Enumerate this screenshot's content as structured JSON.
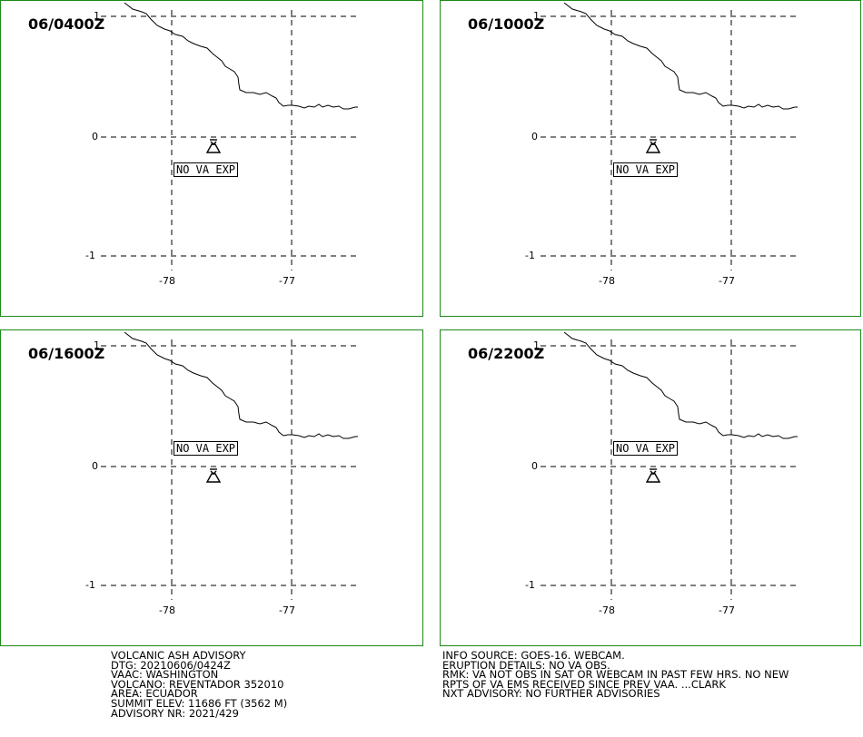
{
  "colors": {
    "panel_border": "#1a8a1a",
    "line": "#000000",
    "background": "#ffffff"
  },
  "axis_labels": {
    "lat_top": "1",
    "lat_mid": "0",
    "lat_bottom": "-1",
    "lon_left": "-78",
    "lon_right": "-77"
  },
  "va_label": "NO VA EXP",
  "panels": [
    {
      "time": "06/0400Z",
      "label_position": "below-volcano"
    },
    {
      "time": "06/1000Z",
      "label_position": "below-volcano"
    },
    {
      "time": "06/1600Z",
      "label_position": "above-volcano"
    },
    {
      "time": "06/2200Z",
      "label_position": "above-volcano"
    }
  ],
  "icons": {
    "volcano": "volcano-icon"
  },
  "advisory_left": [
    "VOLCANIC ASH ADVISORY",
    "DTG: 20210606/0424Z",
    "VAAC: WASHINGTON",
    "VOLCANO: REVENTADOR 352010",
    "AREA: ECUADOR",
    "SUMMIT ELEV: 11686 FT (3562 M)",
    "ADVISORY NR: 2021/429"
  ],
  "advisory_right": [
    "INFO SOURCE: GOES-16. WEBCAM.",
    "ERUPTION DETAILS: NO VA OBS.",
    "RMK: VA NOT OBS IN SAT OR WEBCAM IN PAST FEW HRS. NO NEW",
    "RPTS OF VA EMS RECEIVED SINCE PREV VAA. ...CLARK",
    "NXT ADVISORY: NO FURTHER ADVISORIES"
  ]
}
